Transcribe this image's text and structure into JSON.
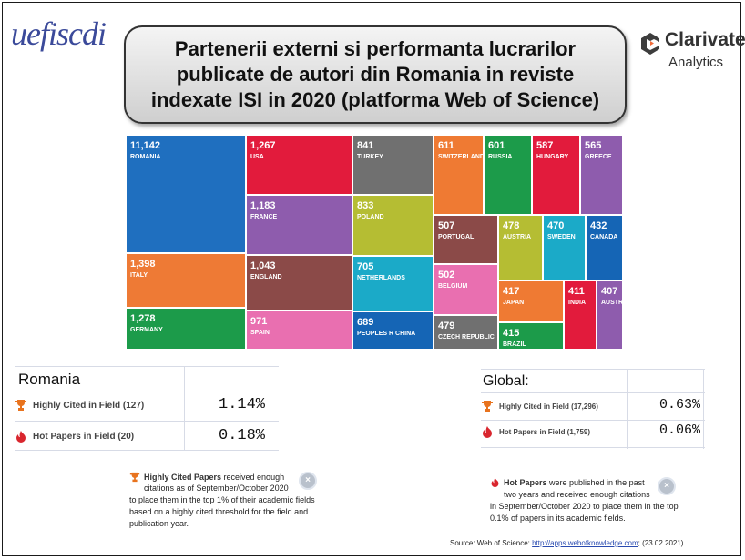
{
  "logo_left": "uefiscdi",
  "title": "Partenerii externi si performanta lucrarilor publicate de autori din Romania in reviste indexate ISI in 2020 (platforma Web of Science)",
  "brand": {
    "name": "Clarivate",
    "sub": "Analytics"
  },
  "treemap": [
    {
      "value": "11,142",
      "name": "ROMANIA",
      "color": "#1f6fbf"
    },
    {
      "value": "1,398",
      "name": "ITALY",
      "color": "#ee7a35"
    },
    {
      "value": "1,278",
      "name": "GERMANY",
      "color": "#1c9b4a"
    },
    {
      "value": "1,267",
      "name": "USA",
      "color": "#e21b3c"
    },
    {
      "value": "1,183",
      "name": "FRANCE",
      "color": "#8e5cad"
    },
    {
      "value": "1,043",
      "name": "ENGLAND",
      "color": "#8b4a48"
    },
    {
      "value": "971",
      "name": "SPAIN",
      "color": "#e96fb0"
    },
    {
      "value": "841",
      "name": "TURKEY",
      "color": "#707070"
    },
    {
      "value": "833",
      "name": "POLAND",
      "color": "#b5bd33"
    },
    {
      "value": "705",
      "name": "NETHERLANDS",
      "color": "#1baac8"
    },
    {
      "value": "689",
      "name": "PEOPLES R CHINA",
      "color": "#1565b5"
    },
    {
      "value": "611",
      "name": "SWITZERLAND",
      "color": "#ef7a33"
    },
    {
      "value": "601",
      "name": "RUSSIA",
      "color": "#1c9b4a"
    },
    {
      "value": "587",
      "name": "HUNGARY",
      "color": "#e21b3c"
    },
    {
      "value": "565",
      "name": "GREECE",
      "color": "#8e5cad"
    },
    {
      "value": "507",
      "name": "PORTUGAL",
      "color": "#8b4a48"
    },
    {
      "value": "478",
      "name": "AUSTRIA",
      "color": "#b5bd33"
    },
    {
      "value": "470",
      "name": "SWEDEN",
      "color": "#1baac8"
    },
    {
      "value": "432",
      "name": "CANADA",
      "color": "#1565b5"
    },
    {
      "value": "502",
      "name": "BELGIUM",
      "color": "#e96fb0"
    },
    {
      "value": "479",
      "name": "CZECH REPUBLIC",
      "color": "#707070"
    },
    {
      "value": "417",
      "name": "JAPAN",
      "color": "#ef7a33"
    },
    {
      "value": "415",
      "name": "BRAZIL",
      "color": "#1c9b4a"
    },
    {
      "value": "411",
      "name": "INDIA",
      "color": "#e21b3c"
    },
    {
      "value": "407",
      "name": "AUSTRALIA",
      "color": "#8e5cad"
    }
  ],
  "romania": {
    "header": "Romania",
    "highly_cited_label": "Highly Cited in Field (127)",
    "highly_cited_pct": "1.14%",
    "hot_papers_label": "Hot Papers in Field (20)",
    "hot_papers_pct": "0.18%"
  },
  "global": {
    "header": "Global:",
    "highly_cited_label": "Highly Cited in Field (17,296)",
    "highly_cited_pct": "0.63%",
    "hot_papers_label": "Hot Papers in Field (1,759)",
    "hot_papers_pct": "0.06%"
  },
  "note_left": {
    "bold": "Highly Cited Papers",
    "line1": " received enough",
    "line2": "citations as of September/October 2020",
    "line3": "to place them in the top 1% of their academic fields",
    "line4": "based on a highly cited threshold for the field and",
    "line5": "publication year."
  },
  "note_right": {
    "bold": "Hot Papers",
    "line1": " were published in the past",
    "line2": "two years and received enough citations",
    "line3": "in September/October 2020 to place them in the top",
    "line4": "0.1% of papers in its academic fields."
  },
  "close_glyph": "×",
  "source": {
    "prefix": "Source: Web of Science: ",
    "link": "http://apps.webofknowledge.com",
    "suffix": ";   (23.02.2021)"
  },
  "colors": {
    "trophy": "#e8731e",
    "flame": "#d9262e"
  }
}
